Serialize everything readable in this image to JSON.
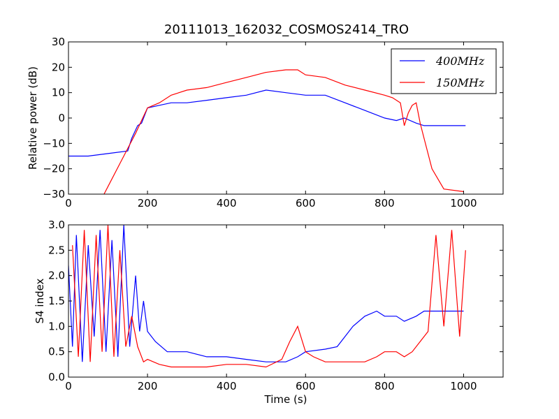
{
  "colors": {
    "series_400": "#0000ff",
    "series_150": "#ff0000"
  },
  "chart_data": [
    {
      "type": "line",
      "title": "20111013_162032_COSMOS2414_TRO",
      "ylabel": "Relative power (dB)",
      "xlabel": "",
      "xlim": [
        0,
        1100
      ],
      "ylim": [
        -30,
        30
      ],
      "x_ticks": [
        "0",
        "200",
        "400",
        "600",
        "800",
        "1000"
      ],
      "y_ticks": [
        "30",
        "20",
        "10",
        "0",
        "−10",
        "−20",
        "−30"
      ],
      "legend": {
        "placement": "top-right",
        "entries": [
          "400MHz",
          "150MHz"
        ]
      },
      "series": [
        {
          "name": "400MHz",
          "color": "#0000ff",
          "x": [
            0,
            50,
            100,
            150,
            160,
            175,
            185,
            200,
            230,
            260,
            300,
            350,
            400,
            450,
            500,
            550,
            600,
            650,
            700,
            750,
            800,
            830,
            850,
            880,
            900,
            950,
            1000,
            1005
          ],
          "y": [
            -15,
            -15,
            -14,
            -13,
            -8,
            -3,
            -2,
            4,
            5,
            6,
            6,
            7,
            8,
            9,
            11,
            10,
            9,
            9,
            6,
            3,
            0,
            -1,
            0,
            -2,
            -3,
            -3,
            -3,
            -3
          ]
        },
        {
          "name": "150MHz",
          "color": "#ff0000",
          "x": [
            90,
            110,
            130,
            150,
            170,
            200,
            230,
            260,
            300,
            350,
            400,
            450,
            500,
            550,
            580,
            600,
            650,
            700,
            750,
            800,
            820,
            840,
            850,
            860,
            870,
            880,
            890,
            900,
            920,
            950,
            1000
          ],
          "y": [
            -30,
            -24,
            -18,
            -12,
            -6,
            4,
            6,
            9,
            11,
            12,
            14,
            16,
            18,
            19,
            19,
            17,
            16,
            13,
            11,
            9,
            8,
            6,
            -3,
            2,
            5,
            6,
            -2,
            -8,
            -20,
            -28,
            -29
          ]
        }
      ]
    },
    {
      "type": "line",
      "title": "",
      "ylabel": "S4 index",
      "xlabel": "Time (s)",
      "xlim": [
        0,
        1100
      ],
      "ylim": [
        0,
        3
      ],
      "x_ticks": [
        "0",
        "200",
        "400",
        "600",
        "800",
        "1000"
      ],
      "y_ticks": [
        "3.0",
        "2.5",
        "2.0",
        "1.5",
        "1.0",
        "0.5",
        "0.0"
      ],
      "series": [
        {
          "name": "400MHz",
          "color": "#0000ff",
          "x": [
            0,
            10,
            20,
            35,
            50,
            65,
            80,
            95,
            110,
            125,
            140,
            155,
            170,
            180,
            190,
            200,
            220,
            250,
            300,
            350,
            400,
            450,
            500,
            550,
            580,
            600,
            650,
            680,
            700,
            720,
            750,
            780,
            800,
            830,
            850,
            880,
            900,
            950,
            1000
          ],
          "y": [
            2.2,
            0.6,
            2.8,
            0.3,
            2.6,
            0.8,
            2.9,
            0.5,
            2.7,
            0.4,
            3.0,
            0.6,
            2.0,
            0.9,
            1.5,
            0.9,
            0.7,
            0.5,
            0.5,
            0.4,
            0.4,
            0.35,
            0.3,
            0.3,
            0.4,
            0.5,
            0.55,
            0.6,
            0.8,
            1.0,
            1.2,
            1.3,
            1.2,
            1.2,
            1.1,
            1.2,
            1.3,
            1.3,
            1.3
          ]
        },
        {
          "name": "150MHz",
          "color": "#ff0000",
          "x": [
            10,
            25,
            40,
            55,
            70,
            85,
            100,
            115,
            130,
            145,
            160,
            175,
            190,
            200,
            230,
            260,
            300,
            350,
            400,
            450,
            500,
            540,
            560,
            580,
            600,
            620,
            650,
            700,
            750,
            780,
            800,
            830,
            850,
            870,
            890,
            910,
            930,
            950,
            970,
            990,
            1005
          ],
          "y": [
            2.6,
            0.4,
            2.9,
            0.3,
            2.8,
            0.5,
            3.0,
            0.4,
            2.5,
            0.6,
            1.2,
            0.6,
            0.3,
            0.35,
            0.25,
            0.2,
            0.2,
            0.2,
            0.25,
            0.25,
            0.2,
            0.35,
            0.7,
            1.0,
            0.5,
            0.4,
            0.3,
            0.3,
            0.3,
            0.4,
            0.5,
            0.5,
            0.4,
            0.5,
            0.7,
            0.9,
            2.8,
            1.0,
            2.9,
            0.8,
            2.5
          ]
        }
      ]
    }
  ]
}
